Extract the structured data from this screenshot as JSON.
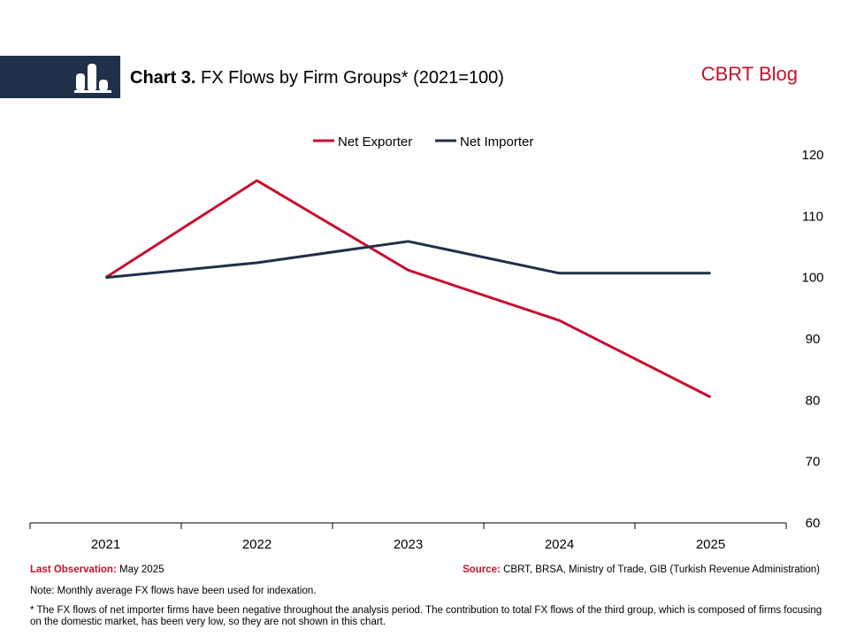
{
  "header": {
    "title_bold": "Chart 3.",
    "title_rest": "FX Flows by Firm Groups* (2021=100)",
    "brand": "CBRT Blog",
    "logo_icon": "bar-chart-icon",
    "band_color": "#1f3049",
    "brand_color": "#c8102e"
  },
  "chart_data": {
    "type": "line",
    "categories": [
      "2021",
      "2022",
      "2023",
      "2024",
      "2025"
    ],
    "series": [
      {
        "name": "Net Exporter",
        "color": "#c8102e",
        "values": [
          100,
          115.8,
          101.2,
          93,
          80.5
        ]
      },
      {
        "name": "Net Importer",
        "color": "#1f3049",
        "values": [
          100,
          102.4,
          105.9,
          100.7,
          100.7
        ]
      }
    ],
    "ylim": [
      60,
      120
    ],
    "yticks": [
      "60",
      "70",
      "80",
      "90",
      "100",
      "110",
      "120"
    ],
    "y_axis_side": "right",
    "legend": "top-center",
    "grid": false
  },
  "footer": {
    "last_obs_label": "Last Observation:",
    "last_obs_value": "May 2025",
    "source_label": "Source:",
    "source_value": "CBRT, BRSA, Ministry of Trade, GIB (Turkish Revenue Administration)",
    "note": "Note: Monthly average FX flows have been used for indexation.",
    "footnote": "* The FX flows of net importer firms have been negative throughout the analysis period. The contribution to total FX flows of the third group, which is composed of firms focusing on the domestic market, has been very low, so they are not shown in this chart."
  }
}
